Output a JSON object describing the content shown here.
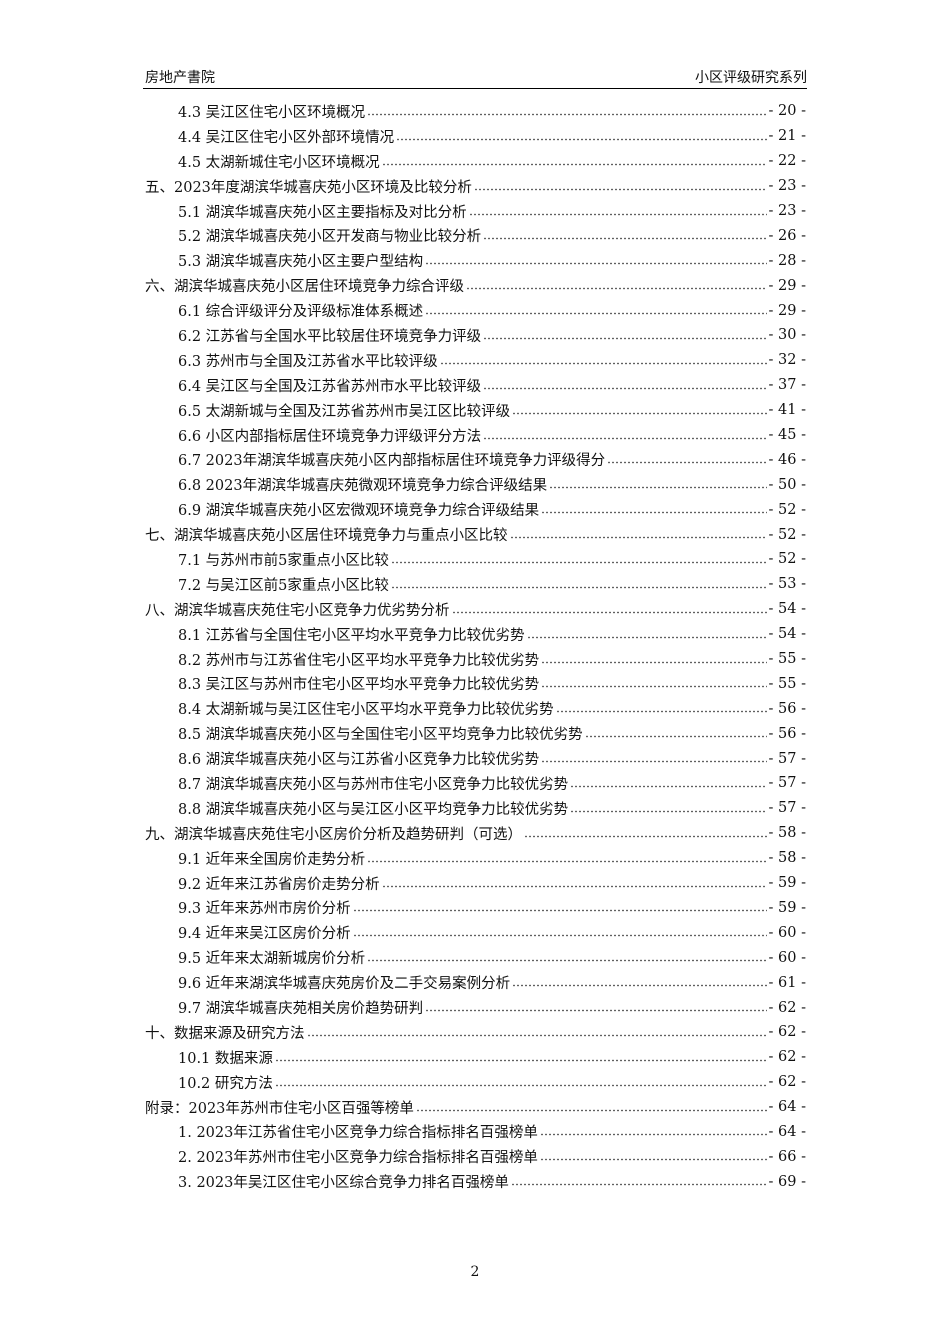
{
  "header": {
    "left": "房地产書院",
    "right": "小区评级研究系列"
  },
  "toc": {
    "leading_items": [
      {
        "title": "4.3 吴江区住宅小区环境概况",
        "page": "- 20 -"
      },
      {
        "title": "4.4 吴江区住宅小区外部环境情况",
        "page": "- 21 -"
      },
      {
        "title": "4.5 太湖新城住宅小区环境概况",
        "page": "- 22 -"
      }
    ],
    "sections": [
      {
        "title": "五、2023年度湖滨华城喜庆苑小区环境及比较分析",
        "page": "- 23 -",
        "items": [
          {
            "title": "5.1 湖滨华城喜庆苑小区主要指标及对比分析",
            "page": "- 23 -"
          },
          {
            "title": "5.2 湖滨华城喜庆苑小区开发商与物业比较分析",
            "page": "- 26 -"
          },
          {
            "title": "5.3 湖滨华城喜庆苑小区主要户型结构",
            "page": "- 28 -"
          }
        ]
      },
      {
        "title": "六、湖滨华城喜庆苑小区居住环境竞争力综合评级",
        "page": "- 29 -",
        "items": [
          {
            "title": "6.1 综合评级评分及评级标准体系概述",
            "page": "- 29 -"
          },
          {
            "title": "6.2 江苏省与全国水平比较居住环境竞争力评级",
            "page": "- 30 -"
          },
          {
            "title": "6.3 苏州市与全国及江苏省水平比较评级",
            "page": "- 32 -"
          },
          {
            "title": "6.4 吴江区与全国及江苏省苏州市水平比较评级",
            "page": "- 37 -"
          },
          {
            "title": "6.5 太湖新城与全国及江苏省苏州市吴江区比较评级",
            "page": "- 41 -"
          },
          {
            "title": "6.6 小区内部指标居住环境竞争力评级评分方法",
            "page": "- 45 -"
          },
          {
            "title": "6.7 2023年湖滨华城喜庆苑小区内部指标居住环境竞争力评级得分",
            "page": "- 46 -"
          },
          {
            "title": "6.8 2023年湖滨华城喜庆苑微观环境竞争力综合评级结果",
            "page": "- 50 -"
          },
          {
            "title": "6.9 湖滨华城喜庆苑小区宏微观环境竞争力综合评级结果",
            "page": "- 52 -"
          }
        ]
      },
      {
        "title": "七、湖滨华城喜庆苑小区居住环境竞争力与重点小区比较",
        "page": "- 52 -",
        "items": [
          {
            "title": "7.1 与苏州市前5家重点小区比较",
            "page": "- 52 -"
          },
          {
            "title": "7.2 与吴江区前5家重点小区比较",
            "page": "- 53 -"
          }
        ]
      },
      {
        "title": "八、湖滨华城喜庆苑住宅小区竞争力优劣势分析",
        "page": "- 54 -",
        "items": [
          {
            "title": "8.1 江苏省与全国住宅小区平均水平竞争力比较优劣势",
            "page": "- 54 -"
          },
          {
            "title": "8.2 苏州市与江苏省住宅小区平均水平竞争力比较优劣势",
            "page": "- 55 -"
          },
          {
            "title": "8.3 吴江区与苏州市住宅小区平均水平竞争力比较优劣势",
            "page": "- 55 -"
          },
          {
            "title": "8.4 太湖新城与吴江区住宅小区平均水平竞争力比较优劣势",
            "page": "- 56 -"
          },
          {
            "title": "8.5 湖滨华城喜庆苑小区与全国住宅小区平均竞争力比较优劣势",
            "page": "- 56 -"
          },
          {
            "title": "8.6 湖滨华城喜庆苑小区与江苏省小区竞争力比较优劣势",
            "page": "- 57 -"
          },
          {
            "title": "8.7 湖滨华城喜庆苑小区与苏州市住宅小区竞争力比较优劣势",
            "page": "- 57 -"
          },
          {
            "title": "8.8 湖滨华城喜庆苑小区与吴江区小区平均竞争力比较优劣势",
            "page": "- 57 -"
          }
        ]
      },
      {
        "title": "九、湖滨华城喜庆苑住宅小区房价分析及趋势研判（可选）",
        "page": "- 58 -",
        "items": [
          {
            "title": "9.1 近年来全国房价走势分析",
            "page": "- 58 -"
          },
          {
            "title": "9.2 近年来江苏省房价走势分析",
            "page": "- 59 -"
          },
          {
            "title": "9.3 近年来苏州市房价分析",
            "page": "- 59 -"
          },
          {
            "title": "9.4 近年来吴江区房价分析",
            "page": "- 60 -"
          },
          {
            "title": "9.5 近年来太湖新城房价分析",
            "page": "- 60 -"
          },
          {
            "title": "9.6 近年来湖滨华城喜庆苑房价及二手交易案例分析",
            "page": "- 61 -"
          },
          {
            "title": "9.7 湖滨华城喜庆苑相关房价趋势研判",
            "page": "- 62 -"
          }
        ]
      },
      {
        "title": "十、数据来源及研究方法",
        "page": "- 62 -",
        "items": [
          {
            "title": "10.1 数据来源",
            "page": "- 62 -"
          },
          {
            "title": "10.2 研究方法",
            "page": "- 62 -"
          }
        ]
      },
      {
        "title": "附录：2023年苏州市住宅小区百强等榜单",
        "page": "- 64 -",
        "items": [
          {
            "title": "1. 2023年江苏省住宅小区竞争力综合指标排名百强榜单",
            "page": "- 64 -"
          },
          {
            "title": "2. 2023年苏州市住宅小区竞争力综合指标排名百强榜单",
            "page": "- 66 -"
          },
          {
            "title": "3. 2023年吴江区住宅小区综合竞争力排名百强榜单",
            "page": "- 69 -"
          }
        ]
      }
    ]
  },
  "footer": {
    "page_number": "2"
  }
}
